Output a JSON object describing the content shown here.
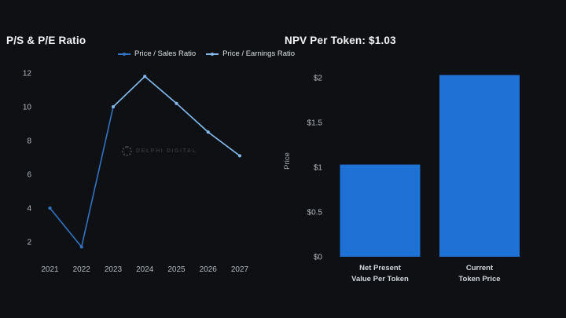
{
  "page": {
    "background": "#0e1013"
  },
  "watermark": {
    "text": "DELPHI DIGITAL"
  },
  "chart_data": [
    {
      "type": "line",
      "title": "P/S & P/E Ratio",
      "categories": [
        "2021",
        "2022",
        "2023",
        "2024",
        "2025",
        "2026",
        "2027"
      ],
      "series": [
        {
          "name": "Price / Sales Ratio",
          "color": "#3174c4",
          "values": [
            4,
            1.7,
            10,
            11.8,
            10.2,
            8.5,
            7.1
          ]
        },
        {
          "name": "Price / Earnings Ratio",
          "color": "#84b9e9",
          "values": [
            null,
            null,
            10,
            11.8,
            10.2,
            8.5,
            7.1
          ]
        }
      ],
      "yticks": [
        "2",
        "4",
        "6",
        "8",
        "10",
        "12"
      ],
      "ytick_values": [
        2,
        4,
        6,
        8,
        10,
        12
      ],
      "ylim": [
        1.5,
        12.5
      ],
      "xlabel": "",
      "ylabel": "",
      "grid": false,
      "legend_position": "top"
    },
    {
      "type": "bar",
      "title": "NPV Per Token: $1.03",
      "categories": [
        [
          "Net Present",
          "Value Per Token"
        ],
        [
          "Current",
          "Token Price"
        ]
      ],
      "values": [
        1.03,
        2.03
      ],
      "bar_color": "#1f72d5",
      "yticks": [
        "$0",
        "$0.5",
        "$1",
        "$1.5",
        "$2"
      ],
      "ytick_values": [
        0,
        0.5,
        1,
        1.5,
        2
      ],
      "ylim": [
        0,
        2.15
      ],
      "xlabel": "",
      "ylabel": "Price",
      "grid": false,
      "legend_position": "none"
    }
  ]
}
